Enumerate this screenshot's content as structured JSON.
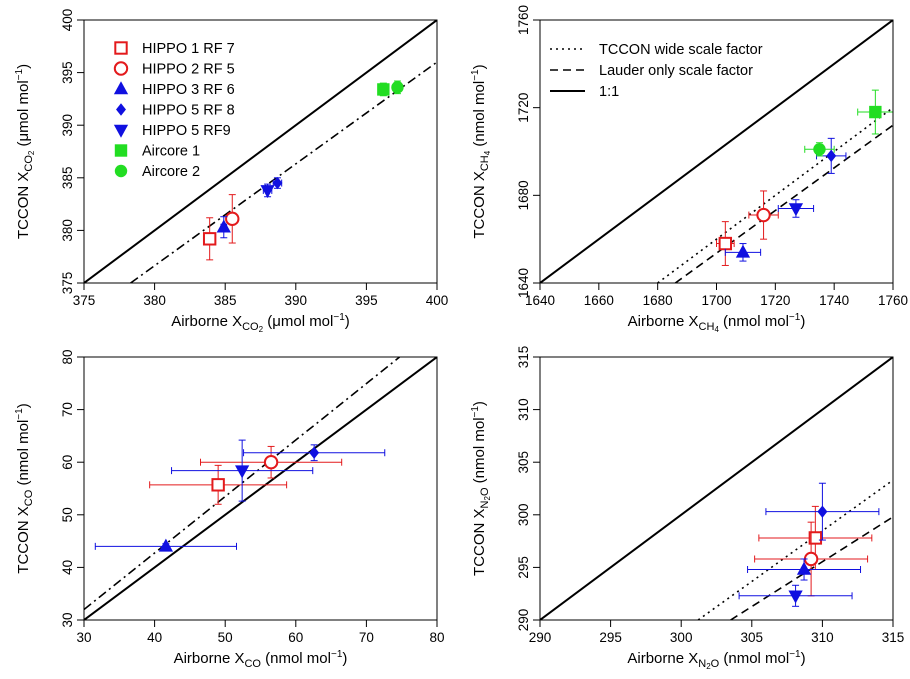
{
  "chart_data": [
    {
      "type": "scatter",
      "id": "co2",
      "xlabel": {
        "prefix": "Airborne X",
        "sub": "CO",
        "subsub": "2",
        "unit_pre": " (μmol mol",
        "sup": "−1",
        "unit_post": ")"
      },
      "ylabel": {
        "prefix": "TCCON X",
        "sub": "CO",
        "subsub": "2",
        "unit_pre": " (μmol mol",
        "sup": "−1",
        "unit_post": ")"
      },
      "xlim": [
        375,
        400
      ],
      "ylim": [
        375,
        400
      ],
      "xticks": [
        375,
        380,
        385,
        390,
        395,
        400
      ],
      "yticks": [
        375,
        380,
        385,
        390,
        395,
        400
      ],
      "lines": [
        {
          "style": "solid",
          "x": [
            375,
            400
          ],
          "y": [
            375,
            400
          ]
        },
        {
          "style": "dashdot",
          "x": [
            378.3,
            400
          ],
          "y": [
            375,
            396
          ]
        }
      ],
      "points": [
        {
          "series": 0,
          "x": 383.9,
          "y": 379.2,
          "xerr": 0.2,
          "yerr": 2.0
        },
        {
          "series": 1,
          "x": 385.5,
          "y": 381.1,
          "xerr": 0.2,
          "yerr": 2.3
        },
        {
          "series": 2,
          "x": 384.9,
          "y": 380.3,
          "xerr": 0.2,
          "yerr": 1.0
        },
        {
          "series": 3,
          "x": 388.7,
          "y": 384.5,
          "xerr": 0.3,
          "yerr": 0.5
        },
        {
          "series": 4,
          "x": 388.0,
          "y": 383.8,
          "xerr": 0.3,
          "yerr": 0.6
        },
        {
          "series": 5,
          "x": 396.2,
          "y": 393.4,
          "xerr": 0.2,
          "yerr": 0.6
        },
        {
          "series": 6,
          "x": 397.2,
          "y": 393.6,
          "xerr": 0.3,
          "yerr": 0.6
        }
      ]
    },
    {
      "type": "scatter",
      "id": "ch4",
      "xlabel": {
        "prefix": "Airborne X",
        "sub": "CH",
        "subsub": "4",
        "unit_pre": " (nmol mol",
        "sup": "−1",
        "unit_post": ")"
      },
      "ylabel": {
        "prefix": "TCCON X",
        "sub": "CH",
        "subsub": "4",
        "unit_pre": " (nmol mol",
        "sup": "−1",
        "unit_post": ")"
      },
      "xlim": [
        1640,
        1760
      ],
      "ylim": [
        1640,
        1760
      ],
      "xticks": [
        1640,
        1660,
        1680,
        1700,
        1720,
        1740,
        1760
      ],
      "yticks": [
        1640,
        1680,
        1720,
        1760
      ],
      "lines": [
        {
          "style": "solid",
          "x": [
            1640,
            1760
          ],
          "y": [
            1640,
            1760
          ]
        },
        {
          "style": "dotted",
          "x": [
            1680,
            1760
          ],
          "y": [
            1640,
            1720
          ]
        },
        {
          "style": "dashed",
          "x": [
            1686,
            1760
          ],
          "y": [
            1640,
            1712
          ]
        }
      ],
      "points": [
        {
          "series": 0,
          "x": 1703,
          "y": 1658,
          "xerr": 3,
          "yerr": 10
        },
        {
          "series": 1,
          "x": 1716,
          "y": 1671,
          "xerr": 5,
          "yerr": 11
        },
        {
          "series": 2,
          "x": 1709,
          "y": 1654,
          "xerr": 6,
          "yerr": 4
        },
        {
          "series": 3,
          "x": 1739,
          "y": 1698,
          "xerr": 5,
          "yerr": 8
        },
        {
          "series": 4,
          "x": 1727,
          "y": 1674,
          "xerr": 6,
          "yerr": 4
        },
        {
          "series": 5,
          "x": 1754,
          "y": 1718,
          "xerr": 6,
          "yerr": 10
        },
        {
          "series": 6,
          "x": 1735,
          "y": 1701,
          "xerr": 5,
          "yerr": 3
        }
      ],
      "legend": {
        "position": "top-left",
        "entries": [
          {
            "style": "dotted",
            "label": "TCCON wide scale factor"
          },
          {
            "style": "dashed",
            "label": "Lauder only scale factor"
          },
          {
            "style": "solid",
            "label": "1:1"
          }
        ]
      }
    },
    {
      "type": "scatter",
      "id": "co",
      "xlabel": {
        "prefix": "Airborne X",
        "sub": "CO",
        "subsub": "",
        "unit_pre": " (nmol mol",
        "sup": "−1",
        "unit_post": ")"
      },
      "ylabel": {
        "prefix": "TCCON X",
        "sub": "CO",
        "subsub": "",
        "unit_pre": " (nmol mol",
        "sup": "−1",
        "unit_post": ")"
      },
      "xlim": [
        30,
        80
      ],
      "ylim": [
        30,
        80
      ],
      "xticks": [
        30,
        40,
        50,
        60,
        70,
        80
      ],
      "yticks": [
        30,
        40,
        50,
        60,
        70,
        80
      ],
      "lines": [
        {
          "style": "solid",
          "x": [
            30,
            80
          ],
          "y": [
            30,
            80
          ]
        },
        {
          "style": "dashdot",
          "x": [
            30,
            74.7
          ],
          "y": [
            32,
            80
          ]
        }
      ],
      "points": [
        {
          "series": 0,
          "x": 49.0,
          "y": 55.7,
          "xerr": 9.7,
          "yerr": 3.7
        },
        {
          "series": 1,
          "x": 56.5,
          "y": 60.0,
          "xerr": 10.0,
          "yerr": 3.0
        },
        {
          "series": 2,
          "x": 41.6,
          "y": 44.0,
          "xerr": 10.0,
          "yerr": 0.5
        },
        {
          "series": 3,
          "x": 62.6,
          "y": 61.8,
          "xerr": 10.0,
          "yerr": 1.5
        },
        {
          "series": 4,
          "x": 52.4,
          "y": 58.4,
          "xerr": 10.0,
          "yerr": 5.8
        }
      ]
    },
    {
      "type": "scatter",
      "id": "n2o",
      "xlabel": {
        "prefix": "Airborne X",
        "sub": "N",
        "subsub": "2",
        "subtail": "O",
        "unit_pre": " (nmol mol",
        "sup": "−1",
        "unit_post": ")"
      },
      "ylabel": {
        "prefix": "TCCON X",
        "sub": "N",
        "subsub": "2",
        "subtail": "O",
        "unit_pre": " (nmol mol",
        "sup": "−1",
        "unit_post": ")"
      },
      "xlim": [
        290,
        315
      ],
      "ylim": [
        290,
        315
      ],
      "xticks": [
        290,
        295,
        300,
        305,
        310,
        315
      ],
      "yticks": [
        290,
        295,
        300,
        305,
        310,
        315
      ],
      "lines": [
        {
          "style": "solid",
          "x": [
            290,
            315
          ],
          "y": [
            290,
            315
          ]
        },
        {
          "style": "dotted",
          "x": [
            301.2,
            315
          ],
          "y": [
            290,
            303.3
          ]
        },
        {
          "style": "dashed",
          "x": [
            303.5,
            315
          ],
          "y": [
            290,
            299.8
          ]
        }
      ],
      "points": [
        {
          "series": 0,
          "x": 309.5,
          "y": 297.8,
          "xerr": 4,
          "yerr": 3
        },
        {
          "series": 1,
          "x": 309.2,
          "y": 295.8,
          "xerr": 4,
          "yerr": 3.5
        },
        {
          "series": 2,
          "x": 308.7,
          "y": 294.8,
          "xerr": 4,
          "yerr": 1
        },
        {
          "series": 3,
          "x": 310.0,
          "y": 300.3,
          "xerr": 4,
          "yerr": 2.7
        },
        {
          "series": 4,
          "x": 308.1,
          "y": 292.3,
          "xerr": 4,
          "yerr": 1
        }
      ]
    }
  ],
  "series": [
    {
      "name": "HIPPO 1 RF 7",
      "marker": "open-square",
      "color": "#e31a1c"
    },
    {
      "name": "HIPPO 2 RF 5",
      "marker": "open-circle",
      "color": "#e31a1c"
    },
    {
      "name": "HIPPO 3 RF 6",
      "marker": "triangle-up",
      "color": "#1010e0"
    },
    {
      "name": "HIPPO 5 RF 8",
      "marker": "diamond",
      "color": "#1010e0"
    },
    {
      "name": "HIPPO 5 RF9",
      "marker": "triangle-down",
      "color": "#1010e0"
    },
    {
      "name": "Aircore 1",
      "marker": "square",
      "color": "#22dd22"
    },
    {
      "name": "Aircore 2",
      "marker": "circle",
      "color": "#22dd22"
    }
  ]
}
